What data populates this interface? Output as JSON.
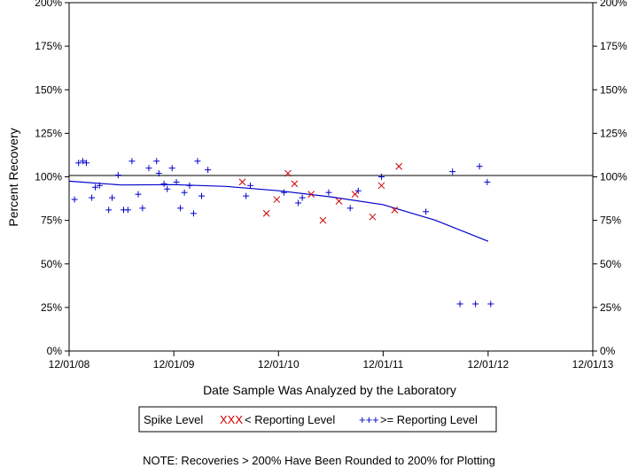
{
  "chart_data": {
    "type": "scatter",
    "title": "",
    "xlabel": "Date Sample Was Analyzed by the Laboratory",
    "ylabel": "Percent Recovery",
    "x_ticks": [
      "12/01/08",
      "12/01/09",
      "12/01/10",
      "12/01/11",
      "12/01/12",
      "12/01/13"
    ],
    "x_range": [
      "2008-12-01",
      "2013-12-01"
    ],
    "y_ticks": [
      "0%",
      "25%",
      "50%",
      "75%",
      "100%",
      "125%",
      "150%",
      "175%",
      "200%"
    ],
    "y_tick_values": [
      0,
      25,
      50,
      75,
      100,
      125,
      150,
      175,
      200
    ],
    "ylim": [
      0,
      200
    ],
    "grid": false,
    "legend_placement": "bottom",
    "reference_line": {
      "y": 100
    },
    "legend": {
      "title": "Spike Level",
      "below_label": "< Reporting Level",
      "above_label": ">= Reporting Level",
      "below_glyph": "XXX",
      "above_glyph": "+++"
    },
    "colors": {
      "below": "#cc0000",
      "above": "#0000cc",
      "trend": "#0000cc",
      "axis": "#000000"
    },
    "series": [
      {
        "name": "< Reporting Level",
        "marker": "x",
        "points": [
          [
            "2010-07-28",
            97
          ],
          [
            "2010-10-20",
            79
          ],
          [
            "2010-11-25",
            87
          ],
          [
            "2011-01-03",
            102
          ],
          [
            "2011-01-26",
            96
          ],
          [
            "2011-03-25",
            90
          ],
          [
            "2011-05-05",
            75
          ],
          [
            "2011-06-30",
            86
          ],
          [
            "2011-08-25",
            90
          ],
          [
            "2011-10-25",
            77
          ],
          [
            "2011-11-25",
            95
          ],
          [
            "2012-01-10",
            81
          ],
          [
            "2012-01-25",
            106
          ]
        ]
      },
      {
        "name": ">= Reporting Level",
        "marker": "+",
        "points": [
          [
            "2008-12-20",
            87
          ],
          [
            "2009-01-03",
            108
          ],
          [
            "2009-01-18",
            109
          ],
          [
            "2009-01-30",
            108
          ],
          [
            "2009-02-18",
            88
          ],
          [
            "2009-03-02",
            94
          ],
          [
            "2009-03-17",
            95
          ],
          [
            "2009-04-18",
            81
          ],
          [
            "2009-04-30",
            88
          ],
          [
            "2009-05-21",
            101
          ],
          [
            "2009-06-09",
            81
          ],
          [
            "2009-06-24",
            81
          ],
          [
            "2009-07-08",
            109
          ],
          [
            "2009-07-30",
            90
          ],
          [
            "2009-08-14",
            82
          ],
          [
            "2009-09-05",
            105
          ],
          [
            "2009-10-02",
            109
          ],
          [
            "2009-10-10",
            102
          ],
          [
            "2009-10-28",
            96
          ],
          [
            "2009-11-08",
            93
          ],
          [
            "2009-11-25",
            105
          ],
          [
            "2009-12-10",
            97
          ],
          [
            "2009-12-24",
            82
          ],
          [
            "2010-01-07",
            91
          ],
          [
            "2010-01-25",
            95
          ],
          [
            "2010-02-08",
            79
          ],
          [
            "2010-02-22",
            109
          ],
          [
            "2010-03-08",
            89
          ],
          [
            "2010-03-30",
            104
          ],
          [
            "2010-08-10",
            89
          ],
          [
            "2010-08-25",
            95
          ],
          [
            "2010-12-20",
            91
          ],
          [
            "2011-02-08",
            85
          ],
          [
            "2011-02-22",
            88
          ],
          [
            "2011-05-25",
            91
          ],
          [
            "2011-08-08",
            82
          ],
          [
            "2011-09-05",
            92
          ],
          [
            "2011-11-25",
            100
          ],
          [
            "2012-04-28",
            80
          ],
          [
            "2012-07-30",
            103
          ],
          [
            "2012-08-25",
            27
          ],
          [
            "2012-10-18",
            27
          ],
          [
            "2012-11-01",
            106
          ],
          [
            "2012-11-28",
            97
          ],
          [
            "2012-12-10",
            27
          ]
        ]
      }
    ],
    "trend_line": {
      "name": "trend",
      "points": [
        [
          "2008-12-01",
          97.5
        ],
        [
          "2009-06-01",
          95.3
        ],
        [
          "2009-12-01",
          95.5
        ],
        [
          "2010-06-01",
          94.5
        ],
        [
          "2010-12-01",
          92.0
        ],
        [
          "2011-06-01",
          88.5
        ],
        [
          "2011-12-01",
          84.0
        ],
        [
          "2012-06-01",
          75.0
        ],
        [
          "2012-12-01",
          63.0
        ]
      ]
    },
    "note": "NOTE: Recoveries > 200% Have Been Rounded to 200% for Plotting"
  }
}
